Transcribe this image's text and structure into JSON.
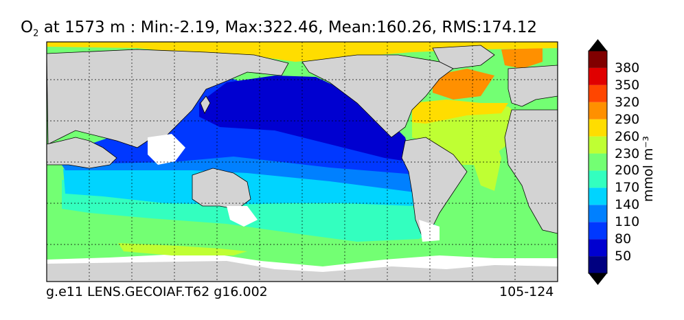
{
  "title": {
    "variable": "O",
    "subscript": "2",
    "text": "at 1573 m : Min:-2.19, Max:322.46, Mean:160.26, RMS:174.12"
  },
  "footer": {
    "left": "g.e11 LENS.GECOIAF.T62 g16.002",
    "right": "105-124"
  },
  "colorbar": {
    "unit": "mmol m⁻³",
    "ticks": [
      "50",
      "80",
      "110",
      "140",
      "170",
      "200",
      "230",
      "260",
      "290",
      "320",
      "350",
      "380"
    ],
    "colors": [
      "#000080",
      "#0000d0",
      "#0038ff",
      "#0080ff",
      "#00d4ff",
      "#33ffbf",
      "#73ff73",
      "#bfff33",
      "#ffdd00",
      "#ff9000",
      "#ff4600",
      "#e00000",
      "#800000"
    ]
  },
  "map": {
    "land_color": "#d3d3d3",
    "missing_color": "#ffffff"
  }
}
